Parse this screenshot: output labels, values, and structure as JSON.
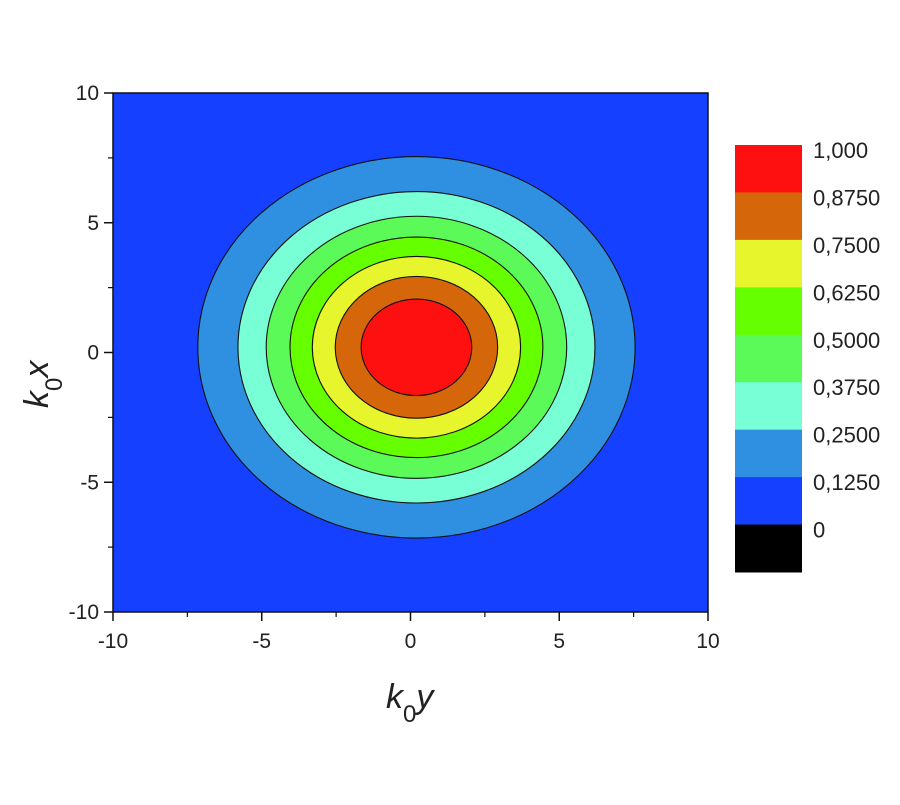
{
  "chart_data": {
    "type": "contour",
    "xlabel": {
      "main": "k",
      "sub": "0",
      "var": "y"
    },
    "ylabel": {
      "main": "k",
      "sub": "0",
      "var": "x"
    },
    "xlim": [
      -10,
      10
    ],
    "ylim": [
      -10,
      10
    ],
    "xticks": [
      "-10",
      "-5",
      "0",
      "5",
      "10"
    ],
    "yticks": [
      "-10",
      "-5",
      "0",
      "5",
      "10"
    ],
    "xtick_values": [
      -10,
      -5,
      0,
      5,
      10
    ],
    "ytick_values": [
      -10,
      -5,
      0,
      5,
      10
    ],
    "minor_tick_step": 2.5,
    "grid": false,
    "peak": {
      "x": 0.2,
      "y": 0.2,
      "value": 1.0
    },
    "background_color": "#1540ff",
    "contours": [
      {
        "level": 0.125,
        "radius": 7.35,
        "fill": "#2f8fe0"
      },
      {
        "level": 0.25,
        "radius": 6.0,
        "fill": "#78ffd6"
      },
      {
        "level": 0.375,
        "radius": 5.05,
        "fill": "#5cfa58"
      },
      {
        "level": 0.5,
        "radius": 4.25,
        "fill": "#66ff00"
      },
      {
        "level": 0.625,
        "radius": 3.5,
        "fill": "#e6f52c"
      },
      {
        "level": 0.75,
        "radius": 2.73,
        "fill": "#d6660a"
      },
      {
        "level": 0.875,
        "radius": 1.86,
        "fill": "#ff1010"
      }
    ],
    "colorbar": {
      "labels": [
        "1,000",
        "0,8750",
        "0,7500",
        "0,6250",
        "0,5000",
        "0,3750",
        "0,2500",
        "0,1250",
        "0"
      ],
      "colors": [
        "#ff1010",
        "#d6660a",
        "#e6f52c",
        "#66ff00",
        "#5cfa58",
        "#78ffd6",
        "#2f8fe0",
        "#1540ff",
        "#000000"
      ],
      "placement": "right"
    }
  }
}
